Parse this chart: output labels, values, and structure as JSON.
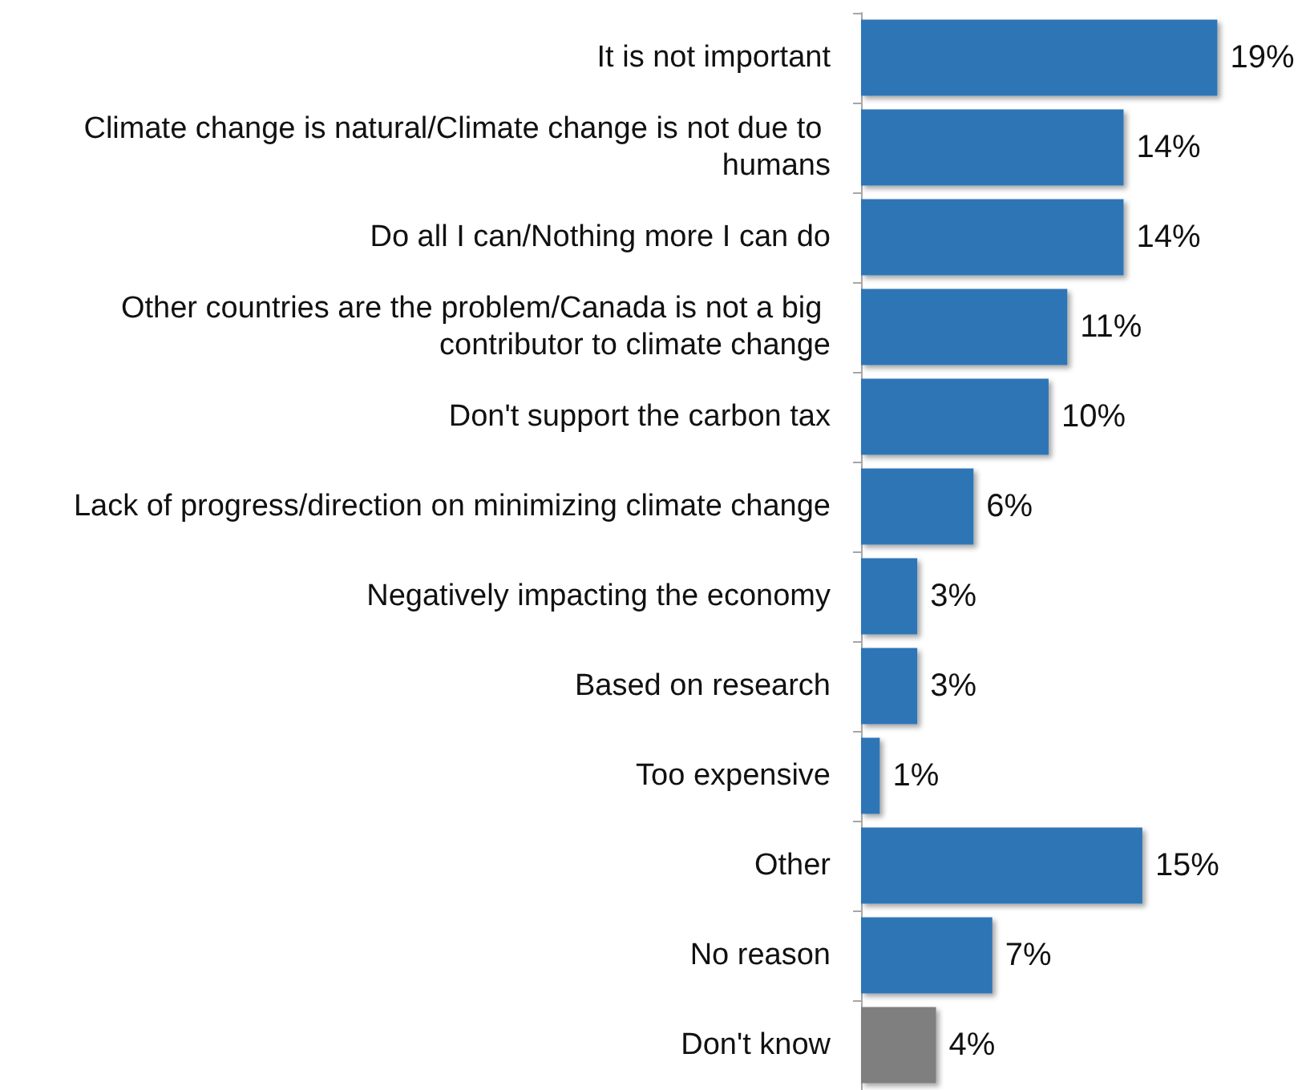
{
  "chart_data": {
    "type": "bar",
    "orientation": "horizontal",
    "categories": [
      "It is not important",
      "Climate change is natural/Climate change is not due to humans",
      "Do all I can/Nothing more I can do",
      "Other countries are the problem/Canada is not a big contributor to climate change",
      "Don't support the carbon tax",
      "Lack of progress/direction on minimizing climate change",
      "Negatively impacting the economy",
      "Based on research",
      "Too expensive",
      "Other",
      "No reason",
      "Don't know"
    ],
    "values": [
      19,
      14,
      14,
      11,
      10,
      6,
      3,
      3,
      1,
      15,
      7,
      4
    ],
    "colors": [
      "#2e75b6",
      "#2e75b6",
      "#2e75b6",
      "#2e75b6",
      "#2e75b6",
      "#2e75b6",
      "#2e75b6",
      "#2e75b6",
      "#2e75b6",
      "#2e75b6",
      "#2e75b6",
      "#7f7f7f"
    ],
    "value_labels": [
      "19%",
      "14%",
      "14%",
      "11%",
      "10%",
      "6%",
      "3%",
      "3%",
      "1%",
      "15%",
      "7%",
      "4%"
    ],
    "grid": false
  }
}
